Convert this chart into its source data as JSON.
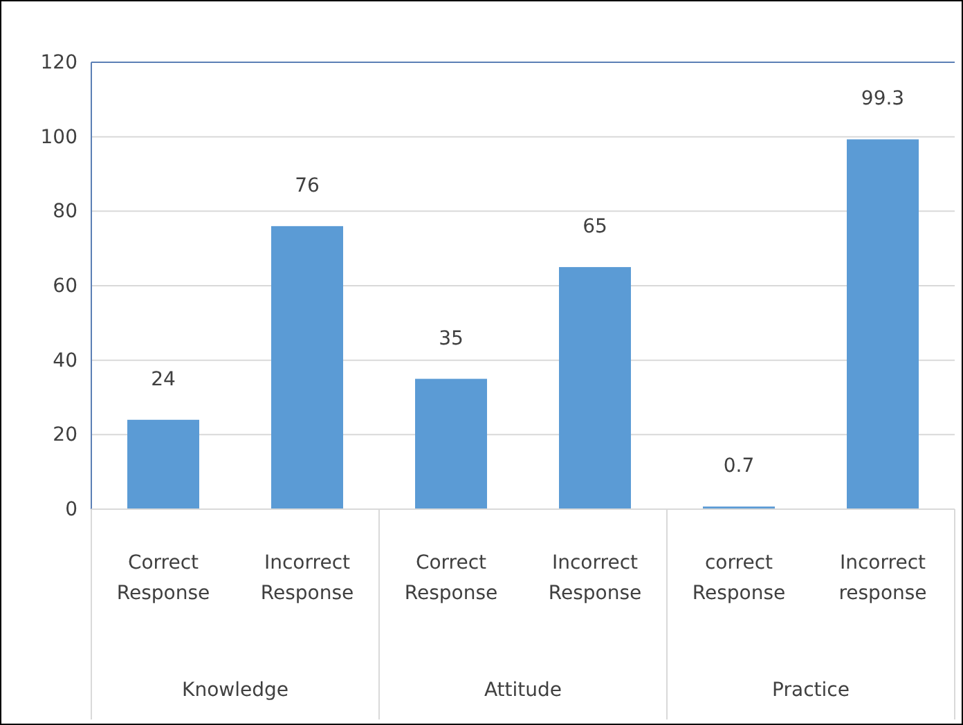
{
  "chart_data": {
    "type": "bar",
    "categories": [
      "Correct Response",
      "Incorrect Response",
      "Correct Response",
      "Incorrect Response",
      "correct Response",
      "Incorrect response"
    ],
    "values": [
      24,
      76,
      35,
      65,
      0.7,
      99.3
    ],
    "color": "#5b9bd5",
    "ylim": [
      0,
      120
    ],
    "yticks": [
      0,
      20,
      40,
      60,
      80,
      100,
      120
    ],
    "grid": "y",
    "data_labels": true,
    "annotations": [
      "Knowledge",
      "Attitude",
      "Practice"
    ]
  }
}
